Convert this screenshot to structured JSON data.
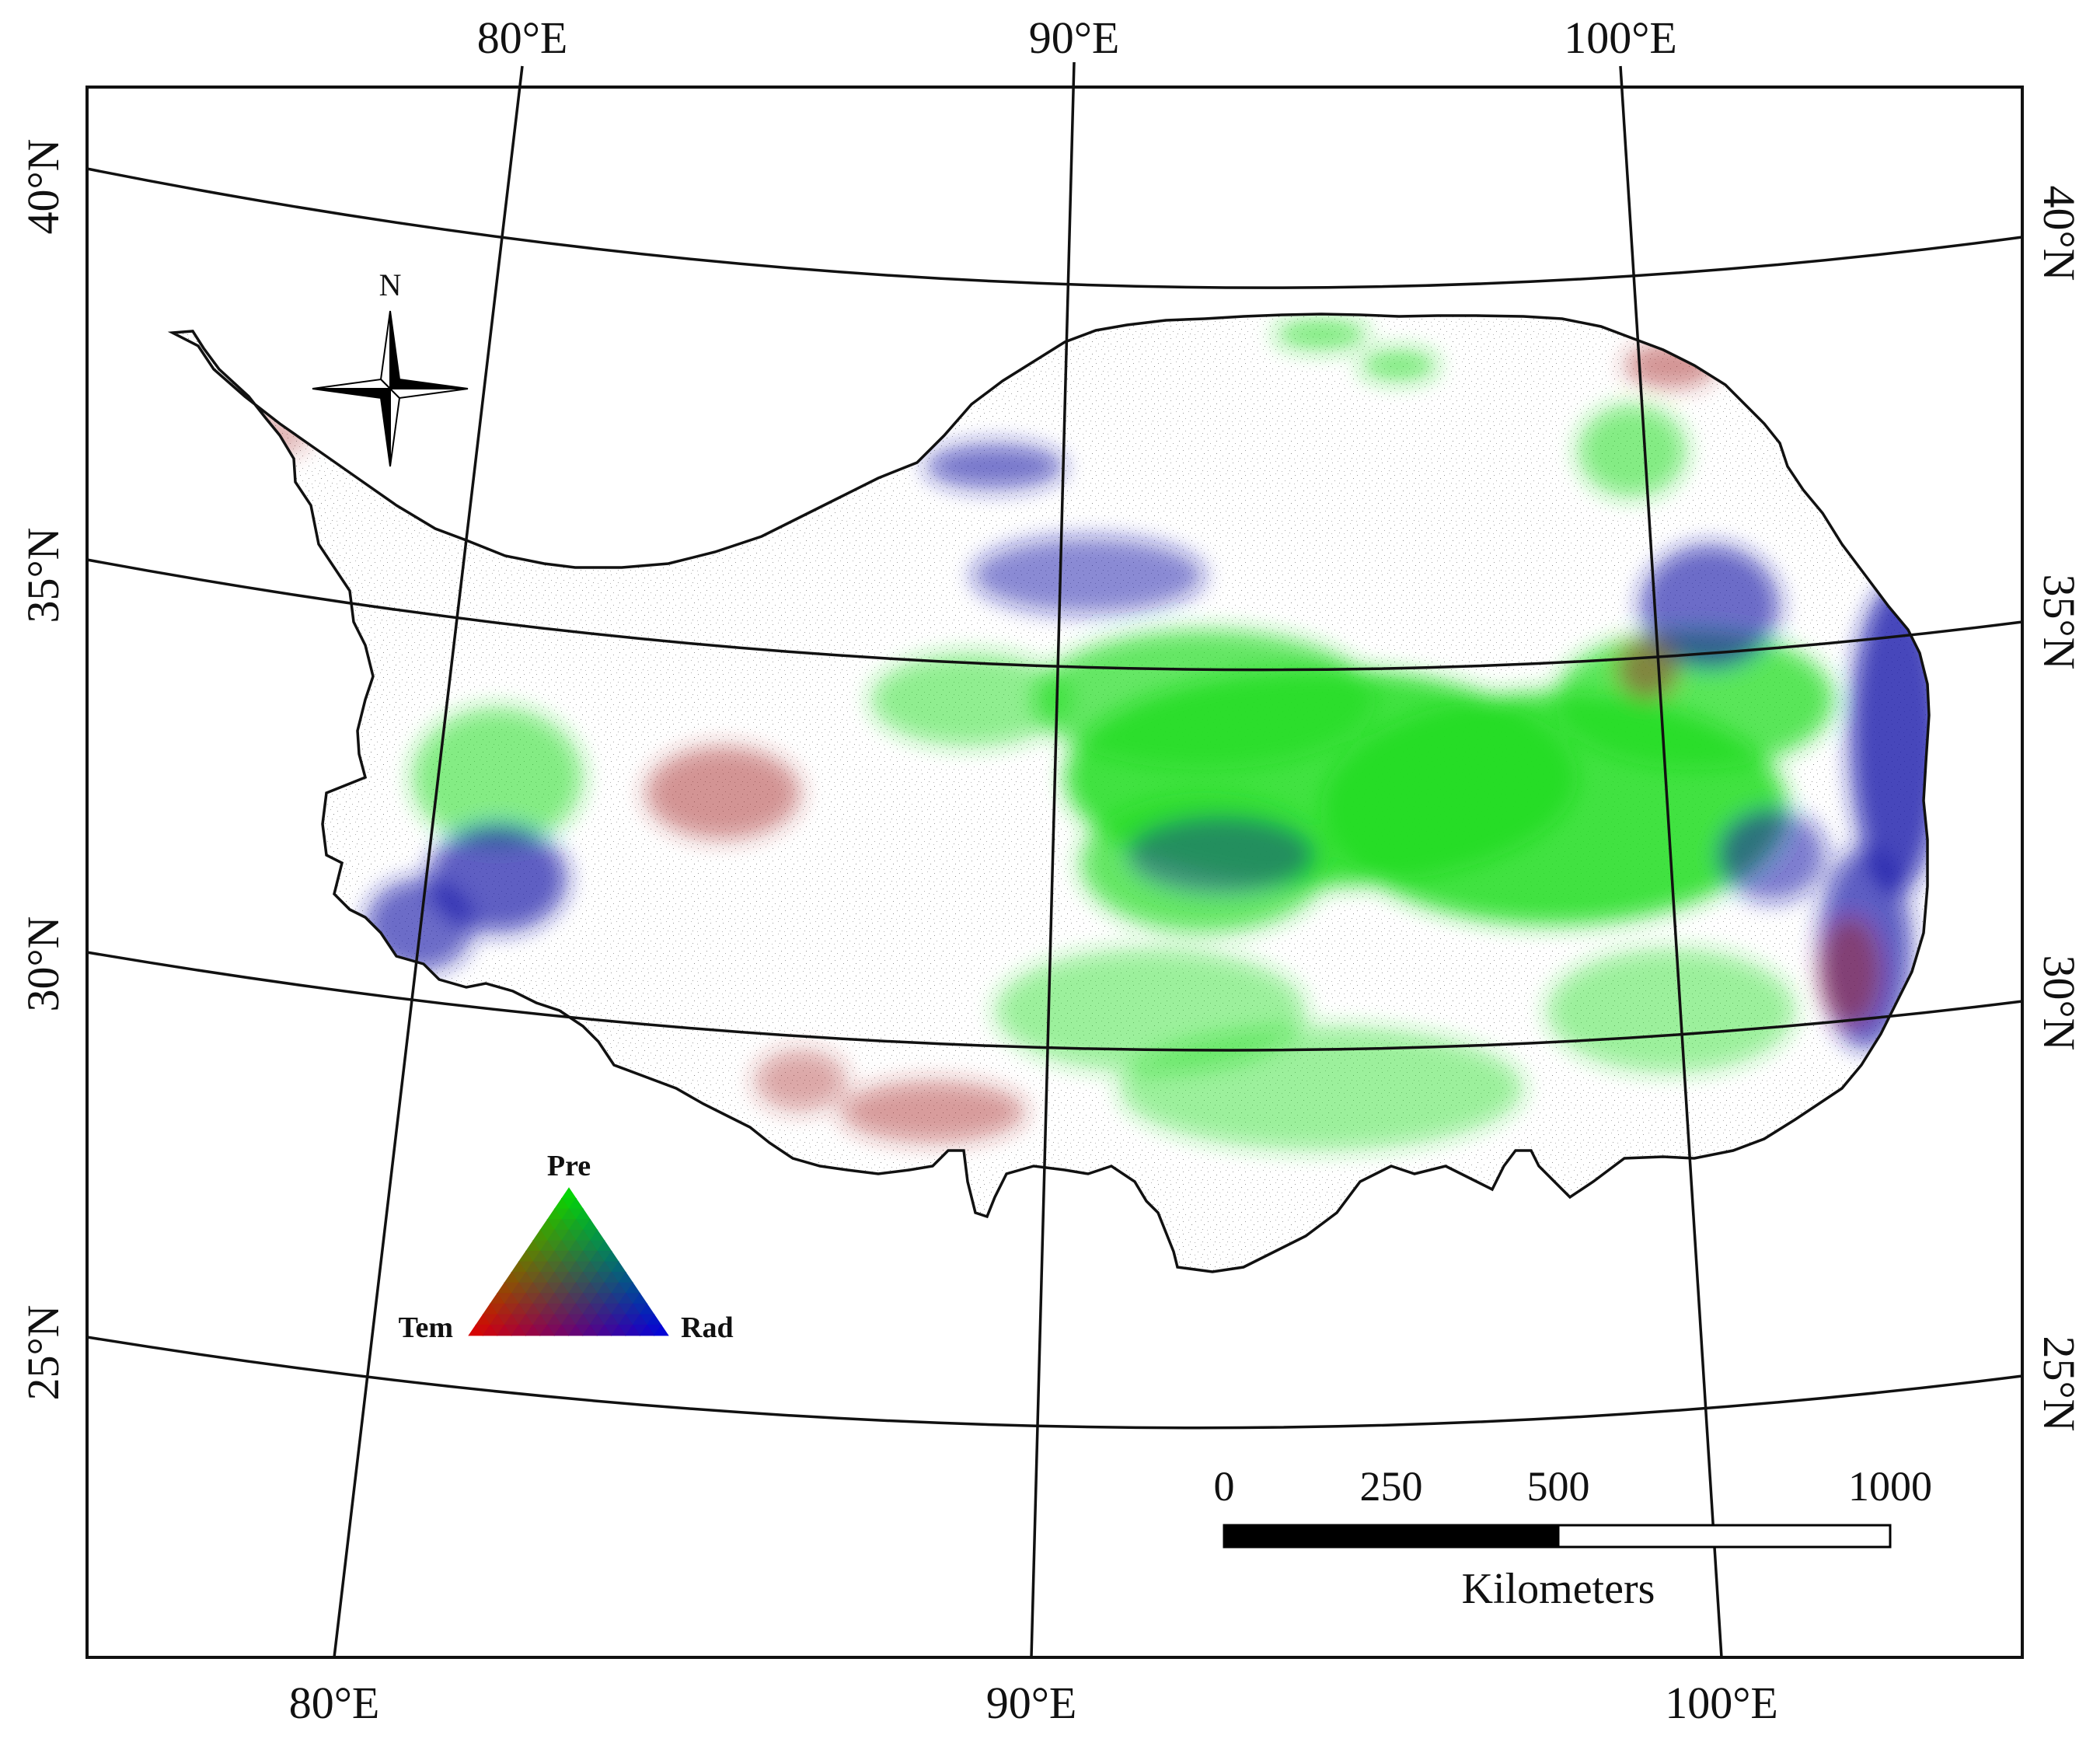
{
  "map": {
    "graticule_top": [
      "80°E",
      "90°E",
      "100°E"
    ],
    "graticule_bottom": [
      "80°E",
      "90°E",
      "100°E"
    ],
    "graticule_left": [
      "40°N",
      "35°N",
      "30°N",
      "25°N"
    ],
    "graticule_right": [
      "40°N",
      "35°N",
      "30°N",
      "25°N"
    ]
  },
  "north_arrow": {
    "label": "N"
  },
  "ternary_legend": {
    "top": "Pre",
    "left": "Tem",
    "right": "Rad",
    "colors": {
      "Pre": "#00e000",
      "Tem": "#e00000",
      "Rad": "#0000e0"
    }
  },
  "scale_bar": {
    "ticks": [
      "0",
      "250",
      "500",
      "1000"
    ],
    "unit": "Kilometers"
  },
  "colors": {
    "region_outline": "#111111",
    "pre_green": "#22dd22",
    "rad_blue": "#1a1aaa",
    "tem_red": "#a82828"
  }
}
